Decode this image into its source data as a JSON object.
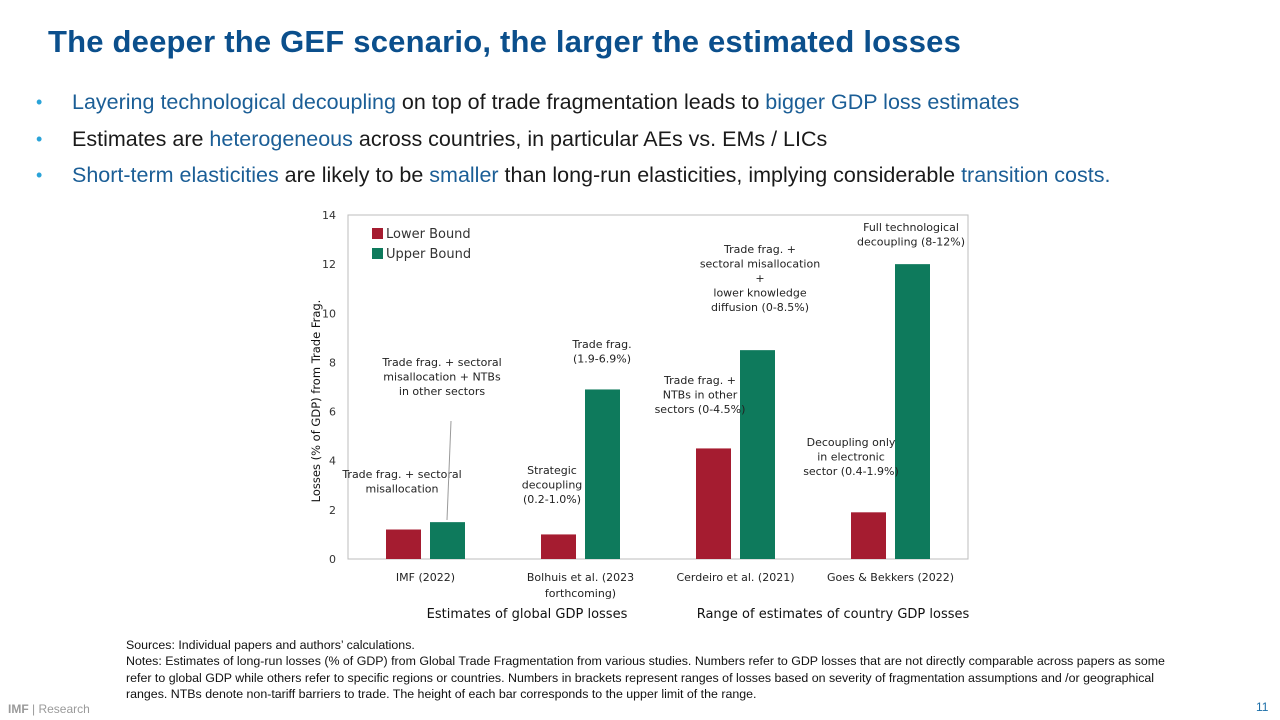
{
  "title": "The deeper the GEF scenario, the larger the estimated losses",
  "bullets": [
    [
      {
        "text": "Layering technological decoupling",
        "hl": true
      },
      {
        "text": " on top of trade fragmentation leads to ",
        "hl": false
      },
      {
        "text": "bigger GDP loss estimates",
        "hl": true
      }
    ],
    [
      {
        "text": "Estimates are ",
        "hl": false
      },
      {
        "text": "heterogeneous",
        "hl": true
      },
      {
        "text": " across countries, in particular AEs vs. EMs / LICs",
        "hl": false
      }
    ],
    [
      {
        "text": "Short-term elasticities",
        "hl": true
      },
      {
        "text": " are likely to be ",
        "hl": false
      },
      {
        "text": "smaller",
        "hl": true
      },
      {
        "text": " than long-run elasticities, implying considerable ",
        "hl": false
      },
      {
        "text": "transition costs.",
        "hl": true
      }
    ]
  ],
  "bullet_symbol": "•",
  "chart_data": {
    "type": "bar",
    "categories": [
      "IMF (2022)",
      "Bolhuis et al. (2023\nforthcoming)",
      "Cerdeiro et al. (2021)",
      "Goes & Bekkers (2022)"
    ],
    "series": [
      {
        "name": "Lower Bound",
        "color": "#a51c30",
        "values": [
          1.2,
          1.0,
          4.5,
          1.9
        ]
      },
      {
        "name": "Upper Bound",
        "color": "#0e7a5c",
        "values": [
          1.5,
          6.9,
          8.5,
          12.0
        ]
      }
    ],
    "ylabel": "Losses (% of GDP) from  Trade Frag.",
    "ylim": [
      0,
      14
    ],
    "yticks": [
      0,
      2,
      4,
      6,
      8,
      10,
      12,
      14
    ],
    "group_labels": [
      "Estimates of global GDP losses",
      "Range of estimates of country GDP losses"
    ],
    "legend_position": "top-left",
    "grid": false,
    "annotations": [
      {
        "category": 0,
        "series": 0,
        "text": "Trade frag. + sectoral\nmisallocation"
      },
      {
        "category": 0,
        "series": 1,
        "text": "Trade frag. + sectoral\nmisallocation + NTBs\nin other sectors"
      },
      {
        "category": 1,
        "series": 0,
        "text": "Strategic\ndecoupling\n(0.2-1.0%)"
      },
      {
        "category": 1,
        "series": 1,
        "text": "Trade frag.\n(1.9-6.9%)"
      },
      {
        "category": 2,
        "series": 0,
        "text": "Trade frag. +\nNTBs in other\nsectors (0-4.5%)"
      },
      {
        "category": 2,
        "series": 1,
        "text": "Trade frag. +\nsectoral misallocation\n+\nlower knowledge\ndiffusion (0-8.5%)"
      },
      {
        "category": 3,
        "series": 0,
        "text": "Decoupling only\nin electronic\nsector (0.4-1.9%)"
      },
      {
        "category": 3,
        "series": 1,
        "text": "Full technological\ndecoupling (8-12%)"
      }
    ]
  },
  "notes": [
    "Sources: Individual papers and authors’ calculations.",
    "Notes: Estimates of long-run losses (% of GDP) from Global Trade Fragmentation from various studies. Numbers refer to GDP losses that are not directly comparable across papers as some refer to global GDP while others refer to specific regions or countries. Numbers in brackets represent ranges of losses based on severity of fragmentation assumptions and /or geographical ranges. NTBs denote non-tariff barriers to trade. The height of each bar corresponds to the upper limit of the range."
  ],
  "footer": {
    "brand": "IMF",
    "separator": " | ",
    "section": "Research",
    "page": "11"
  },
  "colors": {
    "title": "#0b4f8c",
    "highlight": "#1b5e96",
    "bullet": "#2aa3d8"
  }
}
